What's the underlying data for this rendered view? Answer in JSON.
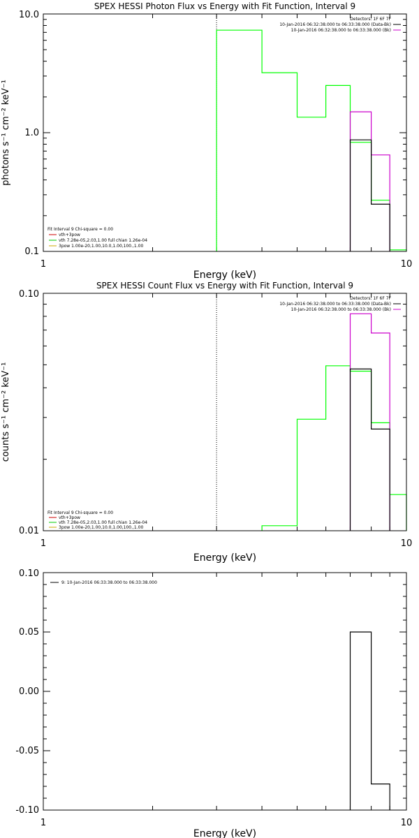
{
  "chart_data": [
    {
      "type": "line",
      "title": "SPEX HESSI Photon Flux vs Energy with Fit Function, Interval 9",
      "xlabel": "Energy (keV)",
      "ylabel": "photons s⁻¹ cm⁻² keV⁻¹",
      "xscale": "log",
      "yscale": "log",
      "xlim": [
        1,
        10
      ],
      "ylim": [
        0.1,
        10
      ],
      "x_tick_labels": [
        "1",
        "10"
      ],
      "y_tick_labels": [
        "0.1",
        "1.0",
        "10.0"
      ],
      "y_ticks": [
        0.1,
        1,
        10
      ],
      "vline_x": 3,
      "legend_top_right": [
        {
          "text": "Detectors: 1F 6F 7F",
          "color": ""
        },
        {
          "text": "10-Jan-2016 06:32:38.000 to 06:33:38.000 (Data-Bk)",
          "color": "#000000"
        },
        {
          "text": "10-Jan-2016 06:32:38.000 to 06:33:38.000 (Bk)",
          "color": "#cc00cc"
        }
      ],
      "legend_bottom_left": [
        {
          "text": "Fit Interval 9   Chi-square = 0.00",
          "color": ""
        },
        {
          "text": "vth+3pow",
          "color": "#cc0000"
        },
        {
          "text": "vth 7.28e-05,2.03,1.00  full chian 1.26e-04",
          "color": "#00cc00"
        },
        {
          "text": "3pow 1.00e-20,1.00,10.0,1.00,100.,1.00",
          "color": "#ccaa00"
        }
      ],
      "series": [
        {
          "name": "10-Jan-2016 06:32:38.000 to 06:33:38.000 (Data-Bk)",
          "color": "#00ff00",
          "edges": [
            3,
            4,
            5,
            6,
            7,
            8,
            9,
            10
          ],
          "values": [
            7.3,
            3.2,
            1.35,
            2.5,
            0.83,
            0.27,
            0.103
          ]
        },
        {
          "name": "10-Jan-2016 06:32:38.000 to 06:33:38.000 (Bk)",
          "color": "#cc00cc",
          "edges": [
            7,
            8,
            9
          ],
          "values": [
            1.5,
            0.65
          ]
        },
        {
          "name": "",
          "color": "#000000",
          "edges": [
            7,
            8,
            9
          ],
          "values": [
            0.87,
            0.25
          ]
        }
      ]
    },
    {
      "type": "line",
      "title": "SPEX HESSI Count Flux vs Energy with Fit Function, Interval 9",
      "xlabel": "Energy (keV)",
      "ylabel": "counts s⁻¹ cm⁻² keV⁻¹",
      "xscale": "log",
      "yscale": "log",
      "xlim": [
        1,
        10
      ],
      "ylim": [
        0.01,
        0.1
      ],
      "x_tick_labels": [
        "1",
        "10"
      ],
      "y_tick_labels": [
        "0.01",
        "0.10"
      ],
      "y_ticks": [
        0.01,
        0.1
      ],
      "vline_x": 3,
      "legend_top_right": [
        {
          "text": "Detectors: 1F 6F 7F",
          "color": ""
        },
        {
          "text": "10-Jan-2016 06:32:38.000 to 06:33:38.000 (Data-Bk)",
          "color": "#000000"
        },
        {
          "text": "10-Jan-2016 06:32:38.000 to 06:33:38.000 (Bk)",
          "color": "#cc00cc"
        }
      ],
      "legend_bottom_left": [
        {
          "text": "Fit Interval 9   Chi-square = 0.00",
          "color": ""
        },
        {
          "text": "vth+3pow",
          "color": "#cc0000"
        },
        {
          "text": "vth 7.28e-05,2.03,1.00  full chian 1.26e-04",
          "color": "#00cc00"
        },
        {
          "text": "3pow 1.00e-20,1.00,10.0,1.00,100.,1.00",
          "color": "#ccaa00"
        }
      ],
      "series": [
        {
          "name": "10-Jan-2016 06:32:38.000 to 06:33:38.000 (Data-Bk)",
          "color": "#00ff00",
          "edges": [
            4,
            5,
            6,
            7,
            8,
            9,
            10
          ],
          "values": [
            0.0105,
            0.0295,
            0.0495,
            0.047,
            0.0285,
            0.0142
          ],
          "start_at_bottom": true
        },
        {
          "name": "10-Jan-2016 06:32:38.000 to 06:33:38.000 (Bk)",
          "color": "#cc00cc",
          "edges": [
            7,
            8,
            9
          ],
          "values": [
            0.082,
            0.068
          ]
        },
        {
          "name": "",
          "color": "#000000",
          "edges": [
            7,
            8,
            9
          ],
          "values": [
            0.048,
            0.0268
          ]
        }
      ]
    },
    {
      "type": "line",
      "title": "",
      "xlabel": "Energy (keV)",
      "ylabel": "",
      "xscale": "log",
      "yscale": "linear",
      "xlim": [
        1,
        10
      ],
      "ylim": [
        -0.1,
        0.1
      ],
      "x_tick_labels": [
        "1",
        "10"
      ],
      "y_tick_labels": [
        "-0.10",
        "-0.05",
        "0.00",
        "0.05",
        "0.10"
      ],
      "y_ticks": [
        -0.1,
        -0.05,
        0,
        0.05,
        0.1
      ],
      "legend_top_left": [
        {
          "text": "9: 10-Jan-2016 06:33:38.000 to 06:33:38.000",
          "color": "#000000"
        }
      ],
      "series": [
        {
          "name": "9: 10-Jan-2016 06:33:38.000 to 06:33:38.000",
          "color": "#000000",
          "edges": [
            7,
            8,
            9
          ],
          "values": [
            0.05,
            -0.078
          ]
        }
      ]
    }
  ]
}
